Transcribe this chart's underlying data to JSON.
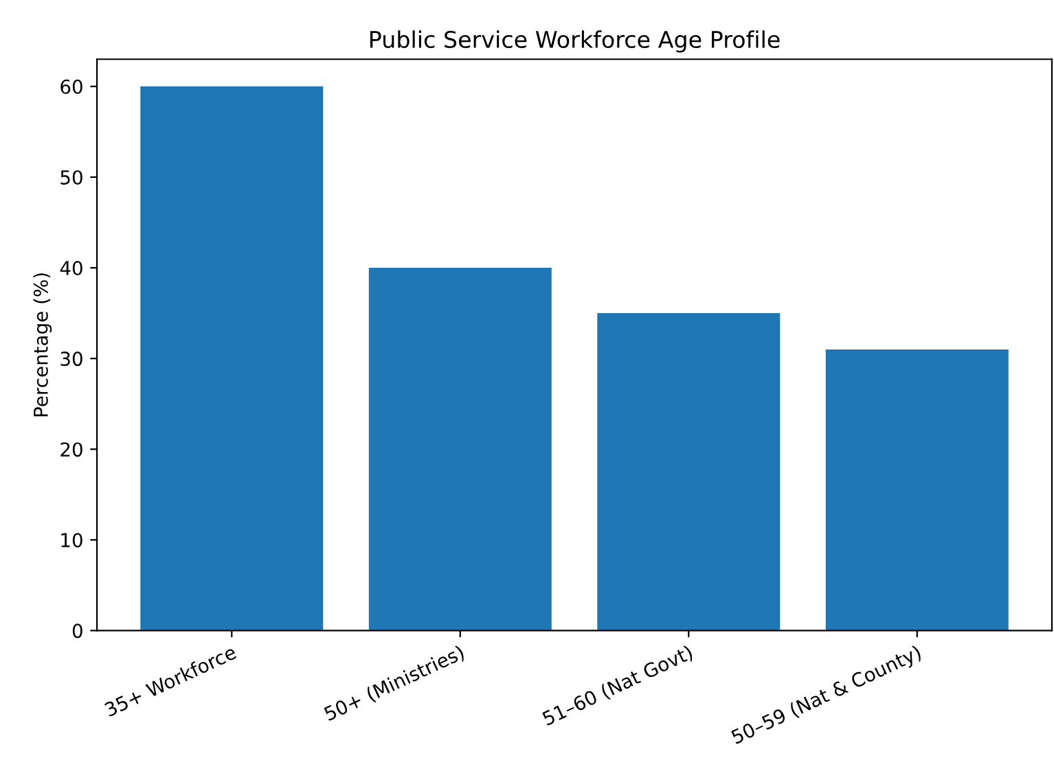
{
  "chart_data": {
    "type": "bar",
    "title": "Public Service Workforce Age Profile",
    "ylabel": "Percentage (%)",
    "categories": [
      "35+ Workforce",
      "50+ (Ministries)",
      "51–60 (Nat Govt)",
      "50–59 (Nat & County)"
    ],
    "values": [
      60,
      40,
      35,
      31
    ],
    "color": "#1f77b4",
    "ylim": [
      0,
      63
    ],
    "yticks": [
      0,
      10,
      20,
      30,
      40,
      50,
      60
    ],
    "grid": false,
    "legend": false
  }
}
